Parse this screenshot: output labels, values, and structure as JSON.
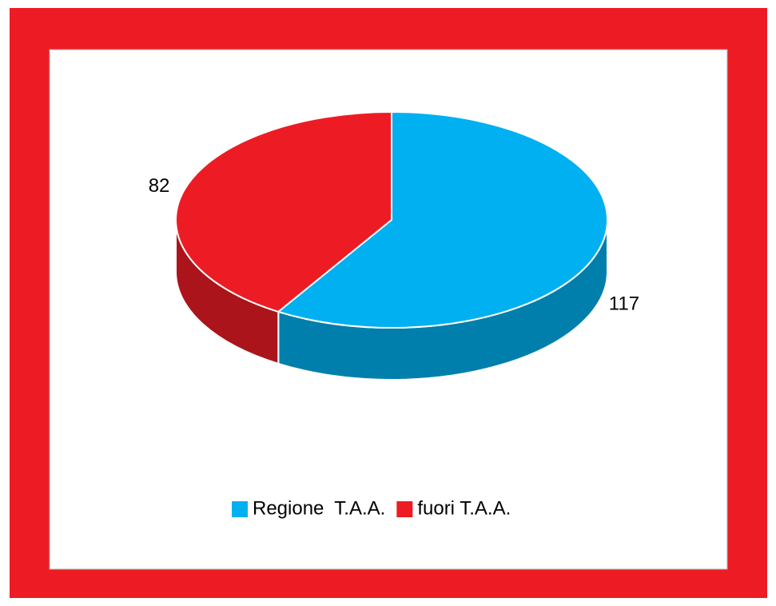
{
  "chart_data": {
    "type": "pie",
    "3d": true,
    "categories": [
      "Regione  T.A.A.",
      "fuori T.A.A."
    ],
    "values": [
      117,
      82
    ],
    "colors": [
      "#00b0f0",
      "#ed1c24"
    ],
    "legend": "bottom"
  }
}
